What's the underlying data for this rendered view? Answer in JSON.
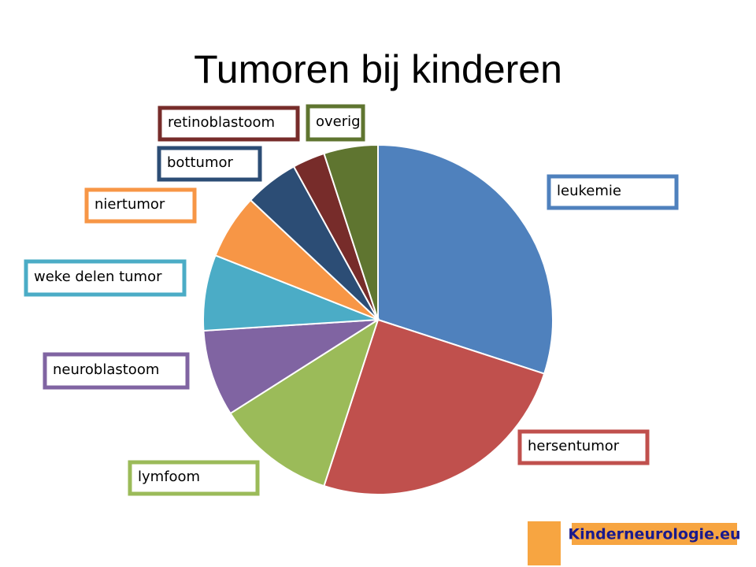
{
  "chart_data": {
    "type": "pie",
    "title": "Tumoren bij kinderen",
    "categories": [
      "leukemie",
      "hersentumor",
      "lymfoom",
      "neuroblastoom",
      "weke delen tumor",
      "niertumor",
      "bottumor",
      "retinoblastoom",
      "overig"
    ],
    "values": [
      30,
      25,
      11,
      8,
      7,
      6,
      5,
      3,
      5
    ],
    "colors": [
      "#4f81bd",
      "#c0504d",
      "#9bbb59",
      "#8064a2",
      "#4bacc6",
      "#f79646",
      "#2c4d75",
      "#772c2a",
      "#5f7530"
    ]
  },
  "logo": "Kinderneurologie.eu"
}
